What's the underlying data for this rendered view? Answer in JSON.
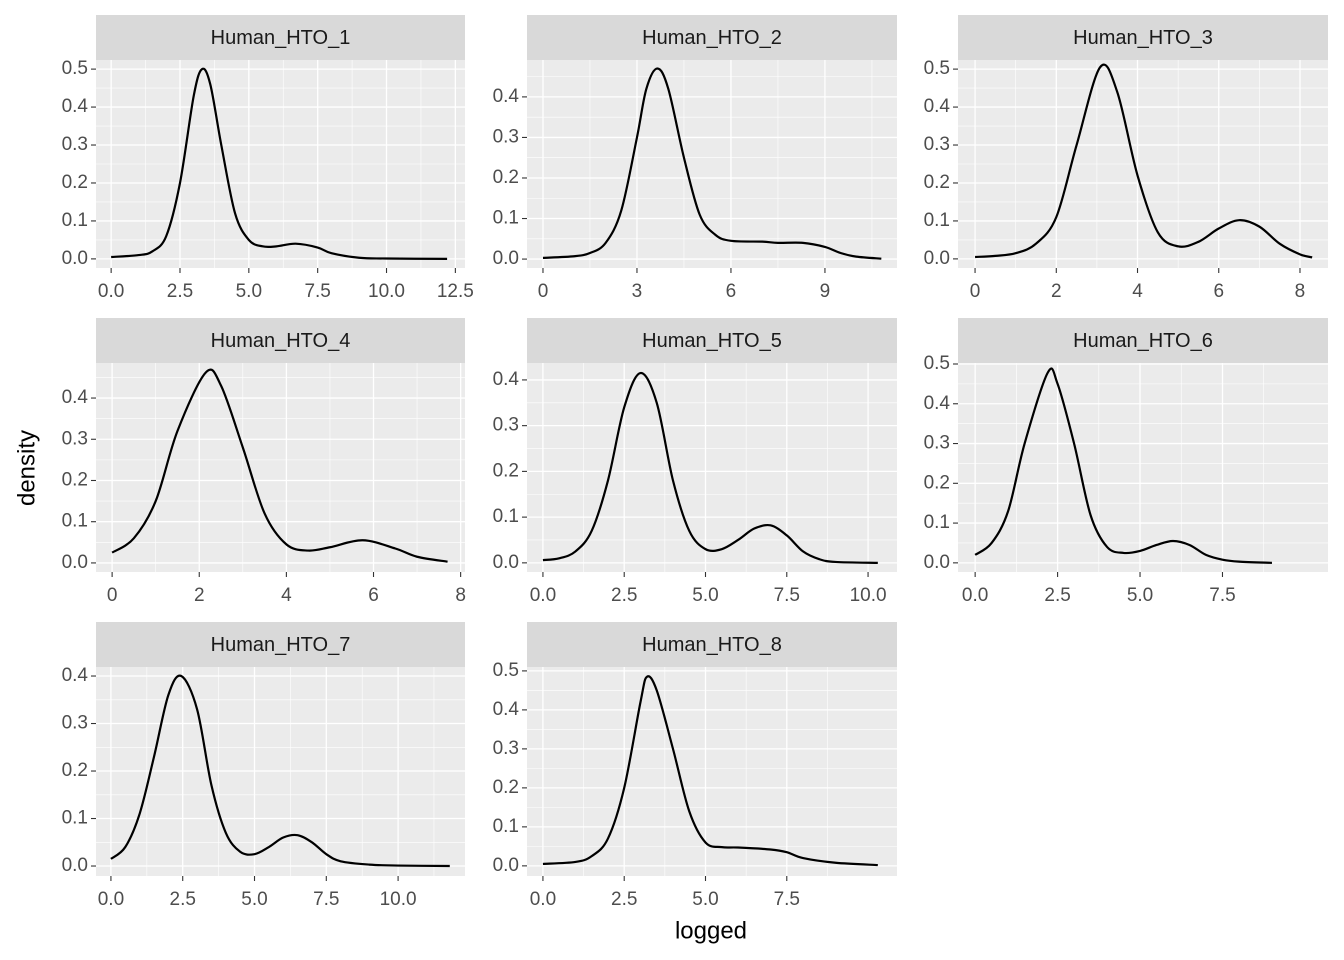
{
  "xlabel": "logged",
  "ylabel": "density",
  "chart_data": [
    {
      "type": "line",
      "title": "Human_HTO_1",
      "color": "#000000",
      "grid": true,
      "x": [
        0,
        1,
        1.5,
        2,
        2.5,
        3,
        3.3,
        3.6,
        4,
        4.5,
        5,
        5.5,
        6,
        6.7,
        7.5,
        8,
        9,
        10,
        12.2
      ],
      "values": [
        0.005,
        0.01,
        0.02,
        0.06,
        0.2,
        0.43,
        0.5,
        0.46,
        0.3,
        0.12,
        0.05,
        0.033,
        0.033,
        0.04,
        0.03,
        0.015,
        0.003,
        0.001,
        0
      ],
      "xlim": [
        -0.55,
        12.85
      ],
      "ylim": [
        -0.024,
        0.524
      ],
      "xticks": [
        {
          "value": 0,
          "label": "0.0"
        },
        2.5,
        {
          "value": 5,
          "label": "5.0"
        },
        7.5,
        {
          "value": 10,
          "label": "10.0"
        },
        12.5
      ],
      "yticks": [
        {
          "value": 0,
          "label": "0.0"
        },
        0.1,
        0.2,
        0.3,
        0.4,
        0.5
      ]
    },
    {
      "type": "line",
      "title": "Human_HTO_2",
      "color": "#000000",
      "grid": true,
      "x": [
        0,
        1,
        1.5,
        2,
        2.5,
        3,
        3.3,
        3.65,
        4,
        4.5,
        5,
        5.5,
        6,
        7,
        7.5,
        8.3,
        9,
        9.5,
        10,
        10.8
      ],
      "values": [
        0.003,
        0.007,
        0.015,
        0.04,
        0.12,
        0.3,
        0.42,
        0.47,
        0.42,
        0.25,
        0.11,
        0.06,
        0.045,
        0.043,
        0.04,
        0.04,
        0.03,
        0.015,
        0.006,
        0.001
      ],
      "xlim": [
        -0.51,
        11.3
      ],
      "ylim": [
        -0.022,
        0.491
      ],
      "xticks": [
        0,
        3,
        6,
        9
      ],
      "yticks": [
        {
          "value": 0,
          "label": "0.0"
        },
        0.1,
        0.2,
        0.3,
        0.4
      ]
    },
    {
      "type": "line",
      "title": "Human_HTO_3",
      "color": "#000000",
      "grid": true,
      "x": [
        0,
        0.5,
        1,
        1.5,
        2,
        2.5,
        3.08,
        3.5,
        4,
        4.5,
        5,
        5.5,
        6,
        6.5,
        7,
        7.5,
        8,
        8.3
      ],
      "values": [
        0.005,
        0.008,
        0.015,
        0.04,
        0.11,
        0.3,
        0.505,
        0.44,
        0.22,
        0.07,
        0.033,
        0.045,
        0.08,
        0.102,
        0.085,
        0.04,
        0.012,
        0.004
      ],
      "xlim": [
        -0.42,
        8.69
      ],
      "ylim": [
        -0.024,
        0.524
      ],
      "xticks": [
        0,
        2,
        4,
        6,
        8
      ],
      "yticks": [
        {
          "value": 0,
          "label": "0.0"
        },
        0.1,
        0.2,
        0.3,
        0.4,
        0.5
      ]
    },
    {
      "type": "line",
      "title": "Human_HTO_4",
      "color": "#000000",
      "grid": true,
      "x": [
        0,
        0.5,
        1,
        1.5,
        2.15,
        2.5,
        3,
        3.5,
        4,
        4.5,
        5,
        5.75,
        6.5,
        7,
        7.7
      ],
      "values": [
        0.025,
        0.06,
        0.15,
        0.32,
        0.462,
        0.43,
        0.28,
        0.12,
        0.045,
        0.03,
        0.038,
        0.055,
        0.035,
        0.015,
        0.003
      ],
      "xlim": [
        -0.37,
        8.1
      ],
      "ylim": [
        -0.022,
        0.485
      ],
      "xticks": [
        0,
        2,
        4,
        6,
        8
      ],
      "yticks": [
        {
          "value": 0,
          "label": "0.0"
        },
        0.1,
        0.2,
        0.3,
        0.4
      ]
    },
    {
      "type": "line",
      "title": "Human_HTO_5",
      "color": "#000000",
      "grid": true,
      "x": [
        0,
        0.5,
        1,
        1.5,
        2,
        2.5,
        3,
        3.5,
        4,
        4.5,
        5,
        5.5,
        6,
        6.5,
        7,
        7.5,
        8,
        8.5,
        9,
        10.3
      ],
      "values": [
        0.006,
        0.01,
        0.025,
        0.07,
        0.18,
        0.34,
        0.415,
        0.35,
        0.18,
        0.07,
        0.03,
        0.03,
        0.05,
        0.075,
        0.082,
        0.06,
        0.025,
        0.008,
        0.002,
        0
      ],
      "xlim": [
        -0.49,
        10.89
      ],
      "ylim": [
        -0.02,
        0.437
      ],
      "xticks": [
        {
          "value": 0,
          "label": "0.0"
        },
        2.5,
        {
          "value": 5,
          "label": "5.0"
        },
        7.5,
        {
          "value": 10,
          "label": "10.0"
        }
      ],
      "yticks": [
        {
          "value": 0,
          "label": "0.0"
        },
        0.1,
        0.2,
        0.3,
        0.4
      ]
    },
    {
      "type": "line",
      "title": "Human_HTO_6",
      "color": "#000000",
      "grid": true,
      "x": [
        0,
        0.5,
        1,
        1.5,
        2.2,
        2.5,
        3,
        3.5,
        4,
        4.5,
        5,
        5.5,
        6,
        6.5,
        7,
        7.5,
        8,
        9
      ],
      "values": [
        0.02,
        0.05,
        0.13,
        0.3,
        0.478,
        0.45,
        0.3,
        0.12,
        0.04,
        0.025,
        0.03,
        0.045,
        0.055,
        0.045,
        0.02,
        0.008,
        0.003,
        0
      ],
      "xlim": [
        -0.52,
        10.7
      ],
      "ylim": [
        -0.023,
        0.5025
      ],
      "xticks": [
        {
          "value": 0,
          "label": "0.0"
        },
        2.5,
        {
          "value": 5,
          "label": "5.0"
        },
        7.5
      ],
      "yticks": [
        {
          "value": 0,
          "label": "0.0"
        },
        0.1,
        0.2,
        0.3,
        0.4,
        0.5
      ]
    },
    {
      "type": "line",
      "title": "Human_HTO_7",
      "color": "#000000",
      "grid": true,
      "x": [
        0,
        0.5,
        1,
        1.5,
        2,
        2.45,
        3,
        3.5,
        4,
        4.5,
        5,
        5.5,
        6,
        6.5,
        7,
        7.5,
        8,
        9,
        10,
        11.8
      ],
      "values": [
        0.015,
        0.04,
        0.11,
        0.23,
        0.36,
        0.4,
        0.33,
        0.17,
        0.07,
        0.03,
        0.025,
        0.04,
        0.06,
        0.065,
        0.05,
        0.025,
        0.01,
        0.003,
        0.001,
        0
      ],
      "xlim": [
        -0.52,
        12.33
      ],
      "ylim": [
        -0.021,
        0.419
      ],
      "xticks": [
        {
          "value": 0,
          "label": "0.0"
        },
        2.5,
        {
          "value": 5,
          "label": "5.0"
        },
        7.5,
        {
          "value": 10,
          "label": "10.0"
        }
      ],
      "yticks": [
        {
          "value": 0,
          "label": "0.0"
        },
        0.1,
        0.2,
        0.3,
        0.4
      ]
    },
    {
      "type": "line",
      "title": "Human_HTO_8",
      "color": "#000000",
      "grid": true,
      "x": [
        0,
        1,
        1.5,
        2,
        2.5,
        3,
        3.2,
        3.5,
        4,
        4.5,
        5,
        5.5,
        6,
        7,
        7.5,
        8,
        9,
        10.3
      ],
      "values": [
        0.005,
        0.01,
        0.025,
        0.07,
        0.2,
        0.42,
        0.485,
        0.45,
        0.3,
        0.14,
        0.06,
        0.048,
        0.047,
        0.042,
        0.035,
        0.02,
        0.008,
        0.002
      ],
      "xlim": [
        -0.49,
        10.89
      ],
      "ylim": [
        -0.026,
        0.51
      ],
      "xticks": [
        {
          "value": 0,
          "label": "0.0"
        },
        2.5,
        {
          "value": 5,
          "label": "5.0"
        },
        7.5
      ],
      "yticks": [
        {
          "value": 0,
          "label": "0.0"
        },
        0.1,
        0.2,
        0.3,
        0.4,
        0.5
      ]
    }
  ]
}
